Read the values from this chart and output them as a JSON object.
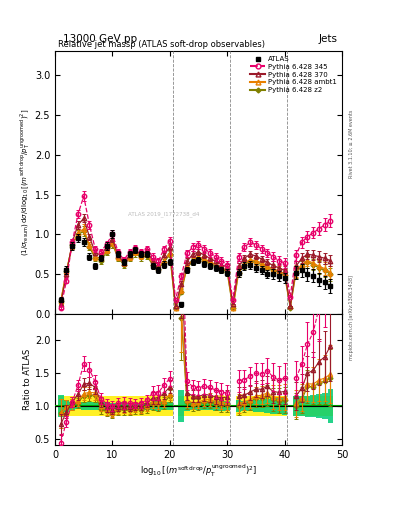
{
  "title_top": "13000 GeV pp",
  "title_top_right": "Jets",
  "plot_title": "Relative jet massρ (ATLAS soft-drop observables)",
  "ylabel_ratio": "Ratio to ATLAS",
  "watermark": "ATLAS 2019_I1772738_d4",
  "side_text_top": "Rivet 3.1.10; ≥ 2.6M events",
  "side_text_bot": "mcplots.cern.ch [arXiv:1306.3438]",
  "xlim": [
    0,
    50
  ],
  "ylim_main": [
    0,
    3.3
  ],
  "ylim_ratio": [
    0.4,
    2.4
  ],
  "atlas_x": [
    1,
    2,
    3,
    4,
    5,
    6,
    7,
    8,
    9,
    10,
    11,
    12,
    13,
    14,
    15,
    16,
    17,
    18,
    19,
    20,
    21,
    22,
    23,
    24,
    25,
    26,
    27,
    28,
    29,
    30,
    31,
    32,
    33,
    34,
    35,
    36,
    37,
    38,
    39,
    40,
    41,
    42,
    43,
    44,
    45,
    46,
    47,
    48
  ],
  "atlas_y": [
    0.18,
    0.55,
    0.85,
    0.95,
    0.9,
    0.72,
    0.6,
    0.7,
    0.85,
    1.0,
    0.75,
    0.65,
    0.75,
    0.8,
    0.75,
    0.75,
    0.6,
    0.55,
    0.62,
    0.65,
    0.0,
    0.12,
    0.55,
    0.65,
    0.68,
    0.63,
    0.6,
    0.58,
    0.55,
    0.52,
    0.0,
    0.52,
    0.6,
    0.62,
    0.58,
    0.55,
    0.5,
    0.5,
    0.48,
    0.45,
    0.0,
    0.52,
    0.55,
    0.5,
    0.48,
    0.43,
    0.4,
    0.35
  ],
  "atlas_ye": [
    0.03,
    0.05,
    0.05,
    0.05,
    0.05,
    0.04,
    0.04,
    0.04,
    0.05,
    0.05,
    0.04,
    0.04,
    0.04,
    0.04,
    0.04,
    0.04,
    0.04,
    0.04,
    0.04,
    0.04,
    0.0,
    0.03,
    0.04,
    0.04,
    0.04,
    0.04,
    0.04,
    0.04,
    0.04,
    0.04,
    0.0,
    0.05,
    0.05,
    0.05,
    0.05,
    0.05,
    0.05,
    0.06,
    0.06,
    0.06,
    0.0,
    0.08,
    0.08,
    0.08,
    0.08,
    0.08,
    0.08,
    0.09
  ],
  "p345_y": [
    0.08,
    0.42,
    0.9,
    1.25,
    1.48,
    1.12,
    0.82,
    0.78,
    0.88,
    1.0,
    0.78,
    0.68,
    0.78,
    0.83,
    0.78,
    0.82,
    0.72,
    0.66,
    0.82,
    0.92,
    0.18,
    0.48,
    0.76,
    0.84,
    0.87,
    0.82,
    0.77,
    0.72,
    0.67,
    0.62,
    0.18,
    0.72,
    0.84,
    0.9,
    0.87,
    0.82,
    0.77,
    0.72,
    0.67,
    0.64,
    0.22,
    0.74,
    0.9,
    0.97,
    1.02,
    1.07,
    1.12,
    1.17
  ],
  "p345_ye": [
    0.02,
    0.03,
    0.04,
    0.05,
    0.06,
    0.05,
    0.04,
    0.04,
    0.04,
    0.05,
    0.04,
    0.04,
    0.04,
    0.04,
    0.04,
    0.04,
    0.04,
    0.04,
    0.04,
    0.05,
    0.0,
    0.04,
    0.05,
    0.05,
    0.05,
    0.05,
    0.05,
    0.05,
    0.05,
    0.05,
    0.0,
    0.05,
    0.05,
    0.05,
    0.05,
    0.05,
    0.05,
    0.06,
    0.06,
    0.06,
    0.0,
    0.07,
    0.07,
    0.07,
    0.07,
    0.08,
    0.08,
    0.08
  ],
  "p370_y": [
    0.13,
    0.5,
    0.9,
    1.12,
    1.2,
    0.97,
    0.77,
    0.74,
    0.84,
    0.94,
    0.74,
    0.64,
    0.74,
    0.8,
    0.75,
    0.79,
    0.67,
    0.62,
    0.74,
    0.84,
    0.1,
    0.38,
    0.66,
    0.75,
    0.78,
    0.74,
    0.7,
    0.66,
    0.62,
    0.59,
    0.12,
    0.6,
    0.7,
    0.75,
    0.73,
    0.69,
    0.65,
    0.61,
    0.58,
    0.55,
    0.1,
    0.6,
    0.7,
    0.75,
    0.74,
    0.72,
    0.7,
    0.67
  ],
  "p370_ye": [
    0.02,
    0.03,
    0.04,
    0.05,
    0.05,
    0.04,
    0.03,
    0.03,
    0.04,
    0.04,
    0.03,
    0.03,
    0.03,
    0.03,
    0.03,
    0.03,
    0.03,
    0.03,
    0.03,
    0.04,
    0.0,
    0.03,
    0.04,
    0.04,
    0.04,
    0.04,
    0.04,
    0.04,
    0.04,
    0.04,
    0.0,
    0.04,
    0.04,
    0.04,
    0.04,
    0.04,
    0.04,
    0.05,
    0.05,
    0.05,
    0.0,
    0.06,
    0.06,
    0.06,
    0.06,
    0.07,
    0.07,
    0.07
  ],
  "pambt_y": [
    0.16,
    0.54,
    0.87,
    1.02,
    1.07,
    0.87,
    0.72,
    0.7,
    0.8,
    0.9,
    0.72,
    0.64,
    0.72,
    0.78,
    0.73,
    0.75,
    0.64,
    0.58,
    0.67,
    0.77,
    0.08,
    0.3,
    0.6,
    0.68,
    0.72,
    0.69,
    0.66,
    0.62,
    0.58,
    0.55,
    0.08,
    0.54,
    0.64,
    0.68,
    0.67,
    0.64,
    0.6,
    0.57,
    0.54,
    0.51,
    0.1,
    0.54,
    0.62,
    0.67,
    0.64,
    0.6,
    0.57,
    0.52
  ],
  "pambt_ye": [
    0.03,
    0.04,
    0.05,
    0.05,
    0.06,
    0.04,
    0.04,
    0.04,
    0.04,
    0.05,
    0.04,
    0.04,
    0.04,
    0.04,
    0.04,
    0.04,
    0.04,
    0.04,
    0.04,
    0.04,
    0.0,
    0.03,
    0.04,
    0.04,
    0.04,
    0.04,
    0.04,
    0.04,
    0.04,
    0.04,
    0.0,
    0.05,
    0.05,
    0.05,
    0.05,
    0.05,
    0.05,
    0.06,
    0.06,
    0.06,
    0.0,
    0.07,
    0.07,
    0.07,
    0.07,
    0.08,
    0.08,
    0.08
  ],
  "pz2_y": [
    0.16,
    0.54,
    0.87,
    1.0,
    1.04,
    0.84,
    0.7,
    0.67,
    0.78,
    0.88,
    0.7,
    0.62,
    0.7,
    0.76,
    0.71,
    0.73,
    0.62,
    0.57,
    0.65,
    0.75,
    0.07,
    0.28,
    0.58,
    0.66,
    0.7,
    0.67,
    0.64,
    0.6,
    0.56,
    0.53,
    0.07,
    0.52,
    0.62,
    0.66,
    0.65,
    0.62,
    0.58,
    0.55,
    0.52,
    0.49,
    0.08,
    0.52,
    0.6,
    0.65,
    0.62,
    0.58,
    0.55,
    0.5
  ],
  "pz2_ye": [
    0.03,
    0.04,
    0.05,
    0.05,
    0.06,
    0.04,
    0.04,
    0.04,
    0.04,
    0.05,
    0.04,
    0.04,
    0.04,
    0.04,
    0.04,
    0.04,
    0.04,
    0.04,
    0.04,
    0.04,
    0.0,
    0.03,
    0.04,
    0.04,
    0.04,
    0.04,
    0.04,
    0.04,
    0.04,
    0.04,
    0.0,
    0.05,
    0.05,
    0.05,
    0.05,
    0.05,
    0.05,
    0.06,
    0.06,
    0.06,
    0.0,
    0.07,
    0.07,
    0.07,
    0.07,
    0.08,
    0.08,
    0.08
  ],
  "color_atlas": "#000000",
  "color_345": "#e8006a",
  "color_370": "#9b1a2a",
  "color_ambt": "#e88000",
  "color_z2": "#808000",
  "vlines": [
    21,
    31,
    41
  ],
  "xticks": [
    0,
    10,
    20,
    30,
    40,
    50
  ],
  "yticks_main": [
    0.0,
    0.5,
    1.0,
    1.5,
    2.0,
    2.5,
    3.0
  ],
  "yticks_ratio": [
    0.5,
    1.0,
    1.5,
    2.0
  ]
}
